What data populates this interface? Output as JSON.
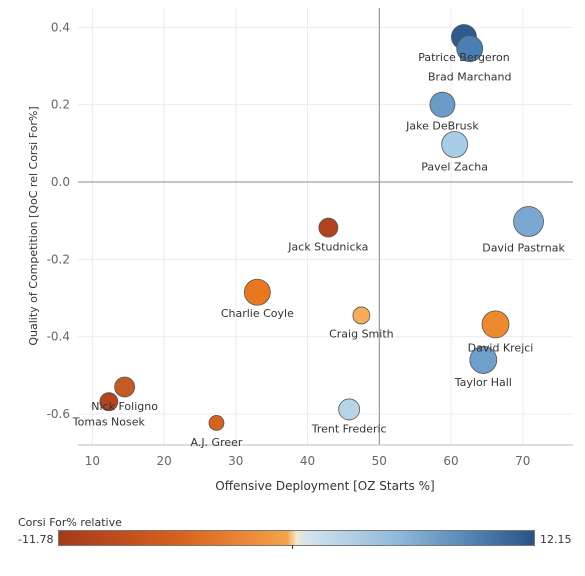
{
  "chart_data": {
    "type": "scatter",
    "xlabel": "Offensive Deployment [OZ Starts %]",
    "ylabel": "Quality of Competition [QoC rel Corsi For%]",
    "xlim": [
      8,
      77
    ],
    "ylim": [
      -0.68,
      0.45
    ],
    "xticks": [
      10,
      20,
      30,
      40,
      50,
      60,
      70
    ],
    "yticks": [
      0.4,
      0.2,
      0.0,
      -0.2,
      -0.4,
      -0.6
    ],
    "ytick_labels": [
      "0.4",
      "0.2",
      "0.0",
      "-0.2",
      "-0.4",
      "-0.6"
    ],
    "reference_lines": {
      "x": 50,
      "y": 0.0
    },
    "grid": true,
    "color_legend": {
      "title": "Corsi For% relative",
      "min": -11.78,
      "max": 12.15,
      "min_label": "-11.78",
      "max_label": "12.15"
    },
    "points": [
      {
        "name": "Patrice Bergeron",
        "x": 61.8,
        "y": 0.375,
        "size": 0.75,
        "color": "#2d5b8e"
      },
      {
        "name": "Brad Marchand",
        "x": 62.6,
        "y": 0.345,
        "size": 0.8,
        "color": "#4a7fb3"
      },
      {
        "name": "Jake DeBrusk",
        "x": 58.8,
        "y": 0.2,
        "size": 0.75,
        "color": "#6b9cc9"
      },
      {
        "name": "Pavel Zacha",
        "x": 60.5,
        "y": 0.097,
        "size": 0.8,
        "color": "#a9cde6"
      },
      {
        "name": "David Pastrnak",
        "x": 70.8,
        "y": -0.102,
        "size": 1.0,
        "color": "#7aa8d2"
      },
      {
        "name": "Jack Studnicka",
        "x": 42.9,
        "y": -0.118,
        "size": 0.45,
        "color": "#b2421d"
      },
      {
        "name": "Charlie Coyle",
        "x": 33.0,
        "y": -0.285,
        "size": 0.8,
        "color": "#e8781f"
      },
      {
        "name": "Craig Smith",
        "x": 47.5,
        "y": -0.345,
        "size": 0.35,
        "color": "#f5ad58"
      },
      {
        "name": "David Krejci",
        "x": 66.2,
        "y": -0.368,
        "size": 0.85,
        "color": "#ee8a2e"
      },
      {
        "name": "Taylor Hall",
        "x": 64.5,
        "y": -0.46,
        "size": 0.85,
        "color": "#6f9fca"
      },
      {
        "name": "Nick Foligno",
        "x": 14.5,
        "y": -0.53,
        "size": 0.5,
        "color": "#c55a22"
      },
      {
        "name": "Tomas Nosek",
        "x": 12.3,
        "y": -0.568,
        "size": 0.4,
        "color": "#b5441d"
      },
      {
        "name": "Trent Frederic",
        "x": 45.8,
        "y": -0.588,
        "size": 0.55,
        "color": "#b8d4e8"
      },
      {
        "name": "A.J. Greer",
        "x": 27.3,
        "y": -0.623,
        "size": 0.25,
        "color": "#d6621c"
      }
    ]
  }
}
